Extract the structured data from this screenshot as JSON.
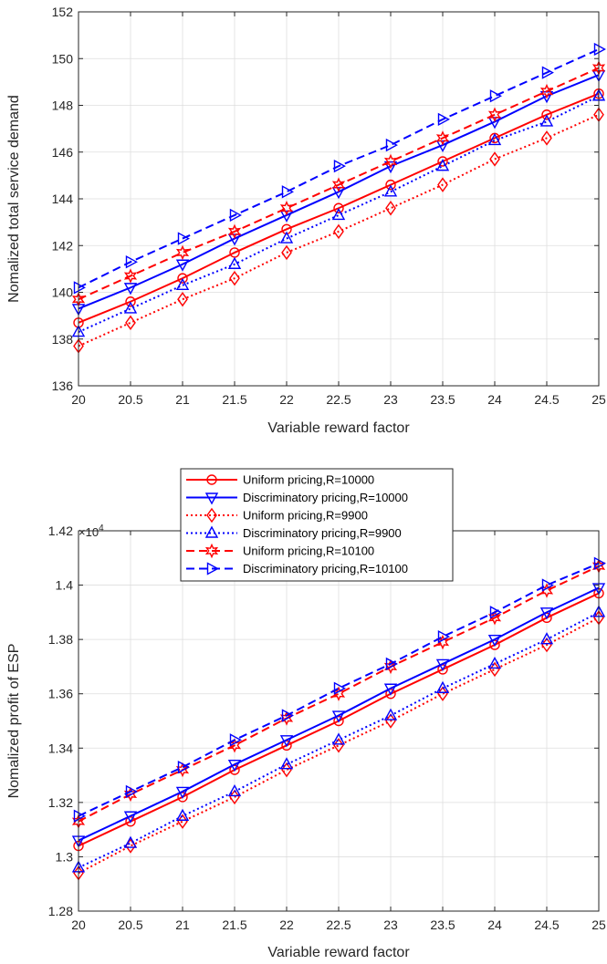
{
  "chart_data": [
    {
      "type": "line",
      "title": "",
      "xlabel": "Variable reward factor",
      "ylabel": "Nomalized total service demand",
      "xlim": [
        20,
        25
      ],
      "ylim": [
        136,
        152
      ],
      "xticks": [
        "20",
        "20.5",
        "21",
        "21.5",
        "22",
        "22.5",
        "23",
        "23.5",
        "24",
        "24.5",
        "25"
      ],
      "yticks": [
        "136",
        "138",
        "140",
        "142",
        "144",
        "146",
        "148",
        "150",
        "152"
      ],
      "grid": true,
      "legend": "none",
      "x": [
        20,
        20.5,
        21,
        21.5,
        22,
        22.5,
        23,
        23.5,
        24,
        24.5,
        25
      ],
      "series": [
        {
          "name": "Uniform pricing,R=10000",
          "color": "#ff0000",
          "dash": "solid",
          "marker": "circle",
          "values": [
            138.7,
            139.6,
            140.6,
            141.7,
            142.7,
            143.6,
            144.6,
            145.6,
            146.6,
            147.6,
            148.5
          ]
        },
        {
          "name": "Discriminatory pricing,R=10000",
          "color": "#0000ff",
          "dash": "solid",
          "marker": "triangle-down",
          "values": [
            139.3,
            140.2,
            141.2,
            142.3,
            143.3,
            144.3,
            145.4,
            146.3,
            147.3,
            148.4,
            149.3
          ]
        },
        {
          "name": "Uniform pricing,R=9900",
          "color": "#ff0000",
          "dash": "dotted",
          "marker": "diamond",
          "values": [
            137.7,
            138.7,
            139.7,
            140.6,
            141.7,
            142.6,
            143.6,
            144.6,
            145.7,
            146.6,
            147.6
          ]
        },
        {
          "name": "Discriminatory pricing,R=9900",
          "color": "#0000ff",
          "dash": "dotted",
          "marker": "triangle-up",
          "values": [
            138.3,
            139.3,
            140.3,
            141.2,
            142.3,
            143.3,
            144.3,
            145.4,
            146.5,
            147.3,
            148.4
          ]
        },
        {
          "name": "Uniform pricing,R=10100",
          "color": "#ff0000",
          "dash": "dashed",
          "marker": "hexagram",
          "values": [
            139.7,
            140.7,
            141.7,
            142.6,
            143.6,
            144.6,
            145.6,
            146.6,
            147.6,
            148.6,
            149.6
          ]
        },
        {
          "name": "Discriminatory pricing,R=10100",
          "color": "#0000ff",
          "dash": "dashed",
          "marker": "triangle-right",
          "values": [
            140.2,
            141.3,
            142.3,
            143.3,
            144.3,
            145.4,
            146.3,
            147.4,
            148.4,
            149.4,
            150.4
          ]
        }
      ]
    },
    {
      "type": "line",
      "title": "",
      "xlabel": "Variable reward factor",
      "ylabel": "Nomalized profit of ESP",
      "xlim": [
        20,
        25
      ],
      "ylim": [
        1.28,
        1.42
      ],
      "xticks": [
        "20",
        "20.5",
        "21",
        "21.5",
        "22",
        "22.5",
        "23",
        "23.5",
        "24",
        "24.5",
        "25"
      ],
      "yticks": [
        "1.28",
        "1.3",
        "1.32",
        "1.34",
        "1.36",
        "1.38",
        "1.4",
        "1.42"
      ],
      "y_multiplier": "×10",
      "y_multiplier_exp": "4",
      "grid": true,
      "legend": "top-left",
      "x": [
        20,
        20.5,
        21,
        21.5,
        22,
        22.5,
        23,
        23.5,
        24,
        24.5,
        25
      ],
      "series": [
        {
          "name": "Uniform pricing,R=10000",
          "color": "#ff0000",
          "dash": "solid",
          "marker": "circle",
          "values": [
            1.304,
            1.313,
            1.322,
            1.332,
            1.341,
            1.35,
            1.36,
            1.369,
            1.378,
            1.388,
            1.397
          ]
        },
        {
          "name": "Discriminatory pricing,R=10000",
          "color": "#0000ff",
          "dash": "solid",
          "marker": "triangle-down",
          "values": [
            1.306,
            1.315,
            1.324,
            1.334,
            1.343,
            1.352,
            1.362,
            1.371,
            1.38,
            1.39,
            1.399
          ]
        },
        {
          "name": "Uniform pricing,R=9900",
          "color": "#ff0000",
          "dash": "dotted",
          "marker": "diamond",
          "values": [
            1.294,
            1.304,
            1.313,
            1.322,
            1.332,
            1.341,
            1.35,
            1.36,
            1.369,
            1.378,
            1.388
          ]
        },
        {
          "name": "Discriminatory pricing,R=9900",
          "color": "#0000ff",
          "dash": "dotted",
          "marker": "triangle-up",
          "values": [
            1.296,
            1.305,
            1.315,
            1.324,
            1.334,
            1.343,
            1.352,
            1.362,
            1.371,
            1.38,
            1.39
          ]
        },
        {
          "name": "Uniform pricing,R=10100",
          "color": "#ff0000",
          "dash": "dashed",
          "marker": "hexagram",
          "values": [
            1.313,
            1.323,
            1.332,
            1.341,
            1.351,
            1.36,
            1.37,
            1.379,
            1.388,
            1.398,
            1.407
          ]
        },
        {
          "name": "Discriminatory pricing,R=10100",
          "color": "#0000ff",
          "dash": "dashed",
          "marker": "triangle-right",
          "values": [
            1.315,
            1.324,
            1.333,
            1.343,
            1.352,
            1.362,
            1.371,
            1.381,
            1.39,
            1.4,
            1.408
          ]
        }
      ]
    }
  ]
}
